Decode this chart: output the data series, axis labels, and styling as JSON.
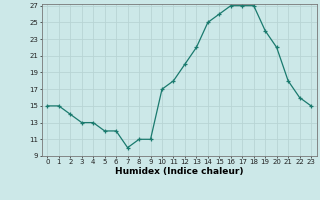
{
  "x": [
    0,
    1,
    2,
    3,
    4,
    5,
    6,
    7,
    8,
    9,
    10,
    11,
    12,
    13,
    14,
    15,
    16,
    17,
    18,
    19,
    20,
    21,
    22,
    23
  ],
  "y": [
    15,
    15,
    14,
    13,
    13,
    12,
    12,
    10,
    11,
    11,
    17,
    18,
    20,
    22,
    25,
    26,
    27,
    27,
    27,
    24,
    22,
    18,
    16,
    15
  ],
  "xlabel": "Humidex (Indice chaleur)",
  "ylim": [
    9,
    27
  ],
  "xlim": [
    -0.5,
    23.5
  ],
  "yticks": [
    9,
    11,
    13,
    15,
    17,
    19,
    21,
    23,
    25,
    27
  ],
  "xticks": [
    0,
    1,
    2,
    3,
    4,
    5,
    6,
    7,
    8,
    9,
    10,
    11,
    12,
    13,
    14,
    15,
    16,
    17,
    18,
    19,
    20,
    21,
    22,
    23
  ],
  "line_color": "#1a7a6e",
  "marker_color": "#1a7a6e",
  "bg_color": "#cce8e8",
  "grid_color": "#b8d4d4",
  "tick_fontsize": 5.0,
  "xlabel_fontsize": 6.5
}
